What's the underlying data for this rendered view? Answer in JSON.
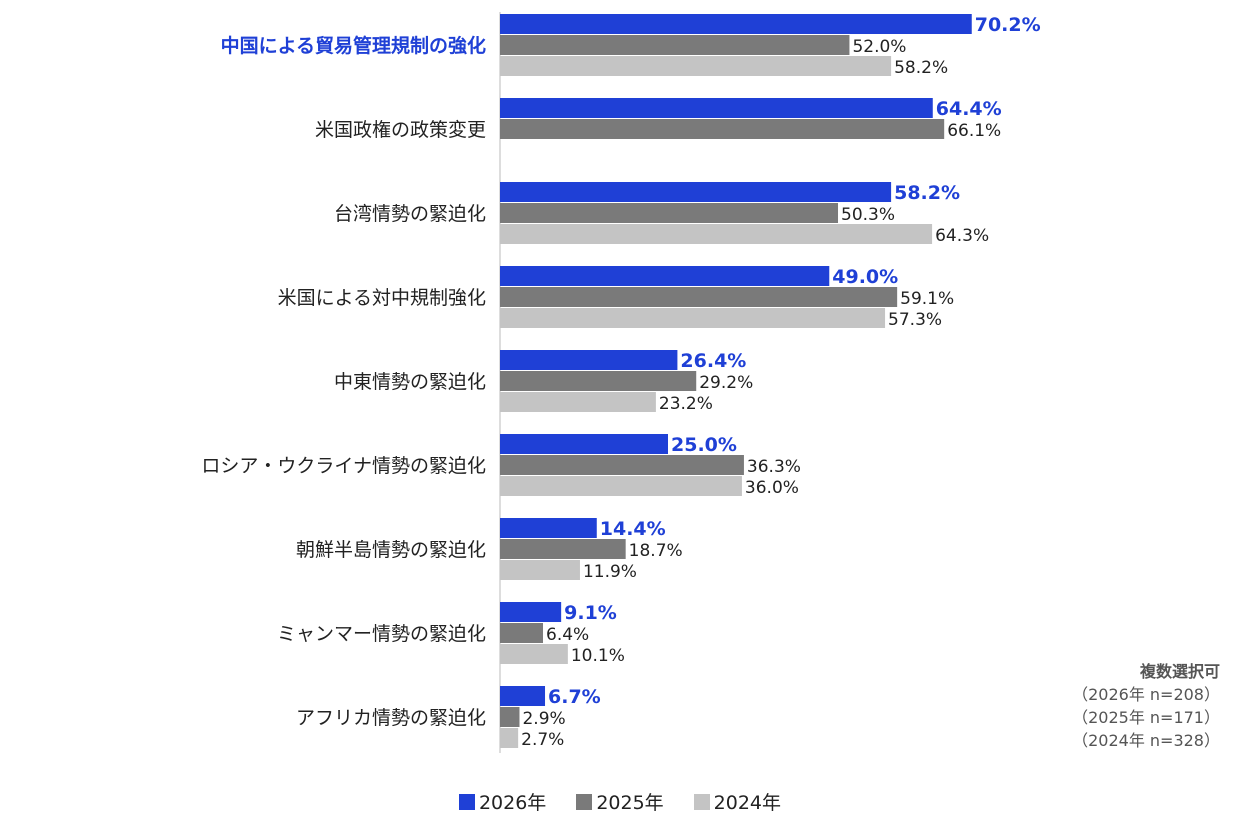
{
  "chart_data": {
    "type": "bar",
    "orientation": "horizontal",
    "categories": [
      "中国による貿易管理規制の強化",
      "米国政権の政策変更",
      "台湾情勢の緊迫化",
      "米国による対中規制強化",
      "中東情勢の緊迫化",
      "ロシア・ウクライナ情勢の緊迫化",
      "朝鮮半島情勢の緊迫化",
      "ミャンマー情勢の緊迫化",
      "アフリカ情勢の緊迫化"
    ],
    "highlighted_category": "中国による貿易管理規制の強化",
    "series": [
      {
        "name": "2026年",
        "color": "#1f40d6",
        "values": [
          70.2,
          64.4,
          58.2,
          49.0,
          26.4,
          25.0,
          14.4,
          9.1,
          6.7
        ],
        "labels": [
          "70.2%",
          "64.4%",
          "58.2%",
          "49.0%",
          "26.4%",
          "25.0%",
          "14.4%",
          "9.1%",
          "6.7%"
        ]
      },
      {
        "name": "2025年",
        "color": "#7a7a7a",
        "values": [
          52.0,
          66.1,
          50.3,
          59.1,
          29.2,
          36.3,
          18.7,
          6.4,
          2.9
        ],
        "labels": [
          "52.0%",
          "66.1%",
          "50.3%",
          "59.1%",
          "29.2%",
          "36.3%",
          "18.7%",
          "6.4%",
          "2.9%"
        ]
      },
      {
        "name": "2024年",
        "color": "#c4c4c4",
        "values": [
          58.2,
          null,
          64.3,
          57.3,
          23.2,
          36.0,
          11.9,
          10.1,
          2.7
        ],
        "labels": [
          "58.2%",
          null,
          "64.3%",
          "57.3%",
          "23.2%",
          "36.0%",
          "11.9%",
          "10.1%",
          "2.7%"
        ]
      }
    ],
    "xlim": [
      0,
      100
    ],
    "grid": false,
    "legend": "bottom"
  },
  "note": {
    "title": "複数選択可",
    "lines": [
      "（2026年 n=208）",
      "（2025年 n=171）",
      "（2024年 n=328）"
    ]
  },
  "legend": {
    "items": [
      {
        "label": "2026年",
        "color": "#1f40d6"
      },
      {
        "label": "2025年",
        "color": "#7a7a7a"
      },
      {
        "label": "2024年",
        "color": "#c4c4c4"
      }
    ]
  }
}
